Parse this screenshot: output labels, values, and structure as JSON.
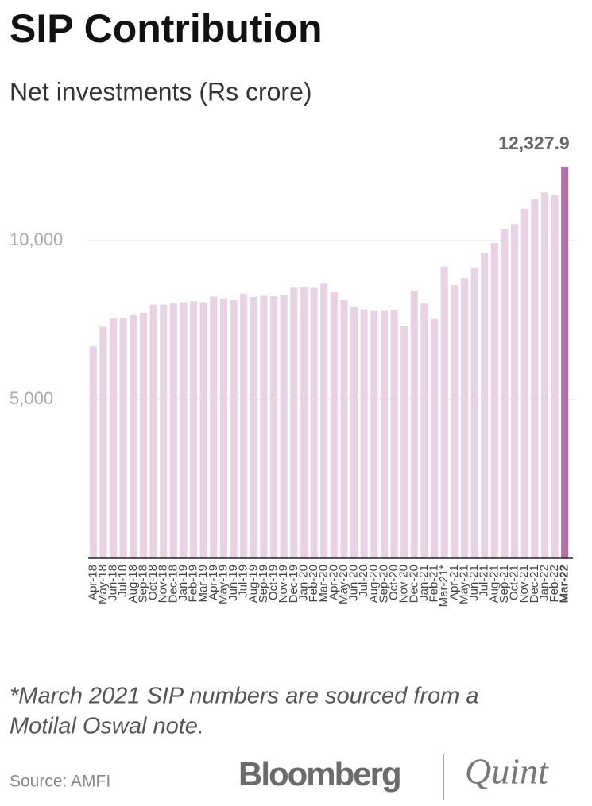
{
  "chart_data": {
    "type": "bar",
    "title": "SIP Contribution",
    "subtitle": "Net investments (Rs crore)",
    "categories": [
      "Apr-18",
      "May-18",
      "Jun-18",
      "Jul-18",
      "Aug-18",
      "Sep-18",
      "Oct-18",
      "Nov-18",
      "Dec-18",
      "Jan-19",
      "Feb-19",
      "Mar-19",
      "Apr-19",
      "May-19",
      "Jun-19",
      "Jul-19",
      "Aug-19",
      "Sep-19",
      "Oct-19",
      "Nov-19",
      "Dec-19",
      "Jan-20",
      "Feb-20",
      "Mar-20",
      "Apr-20",
      "May-20",
      "Jun-20",
      "Jul-20",
      "Aug-20",
      "Sep-20",
      "Oct-20",
      "Nov-20",
      "Dec-20",
      "Jan-21",
      "Feb-21",
      "Mar-21*",
      "Apr-21",
      "May-21",
      "Jun-21",
      "Jul-21",
      "Aug-21",
      "Sep-21",
      "Oct-21",
      "Nov-21",
      "Dec-21",
      "Jan-22",
      "Feb-22",
      "Mar-22"
    ],
    "values": [
      6667,
      7290,
      7554,
      7554,
      7658,
      7727,
      7985,
      7985,
      8022,
      8064,
      8095,
      8055,
      8238,
      8183,
      8122,
      8324,
      8231,
      8263,
      8246,
      8273,
      8518,
      8532,
      8513,
      8641,
      8376,
      8123,
      7917,
      7831,
      7792,
      7788,
      7800,
      7302,
      8418,
      8023,
      7528,
      9182,
      8596,
      8819,
      9156,
      9609,
      9923,
      10351,
      10519,
      11005,
      11305,
      11517,
      11438,
      12327.9
    ],
    "value_labels": [
      null,
      null,
      null,
      null,
      null,
      null,
      null,
      null,
      null,
      null,
      null,
      null,
      null,
      null,
      null,
      null,
      null,
      null,
      null,
      null,
      null,
      null,
      null,
      null,
      null,
      null,
      null,
      null,
      null,
      null,
      null,
      null,
      null,
      null,
      null,
      null,
      null,
      null,
      null,
      null,
      null,
      null,
      null,
      null,
      null,
      null,
      null,
      "12,327.9"
    ],
    "colors": [
      "#e9d2e4",
      "#e9d2e4",
      "#e9d2e4",
      "#e9d2e4",
      "#e9d2e4",
      "#e9d2e4",
      "#e9d2e4",
      "#e9d2e4",
      "#e9d2e4",
      "#e9d2e4",
      "#e9d2e4",
      "#e9d2e4",
      "#e9d2e4",
      "#e9d2e4",
      "#e9d2e4",
      "#e9d2e4",
      "#e9d2e4",
      "#e9d2e4",
      "#e9d2e4",
      "#e9d2e4",
      "#e9d2e4",
      "#e9d2e4",
      "#e9d2e4",
      "#e9d2e4",
      "#e9d2e4",
      "#e9d2e4",
      "#e9d2e4",
      "#e9d2e4",
      "#e9d2e4",
      "#e9d2e4",
      "#e9d2e4",
      "#e9d2e4",
      "#e9d2e4",
      "#e9d2e4",
      "#e9d2e4",
      "#e9d2e4",
      "#e9d2e4",
      "#e9d2e4",
      "#e9d2e4",
      "#e9d2e4",
      "#e9d2e4",
      "#e9d2e4",
      "#e9d2e4",
      "#e9d2e4",
      "#e9d2e4",
      "#e9d2e4",
      "#e9d2e4",
      "#b26fa5"
    ],
    "ylim": [
      0,
      12500
    ],
    "yticks": [
      {
        "value": 5000,
        "label": "5,000"
      },
      {
        "value": 10000,
        "label": "10,000"
      }
    ],
    "grid": true
  },
  "footnote": [
    "*March 2021 SIP numbers are sourced from a",
    "Motilal Oswal note."
  ],
  "source": "Source: AMFI",
  "brand": [
    "Bloomberg",
    "Quint"
  ]
}
